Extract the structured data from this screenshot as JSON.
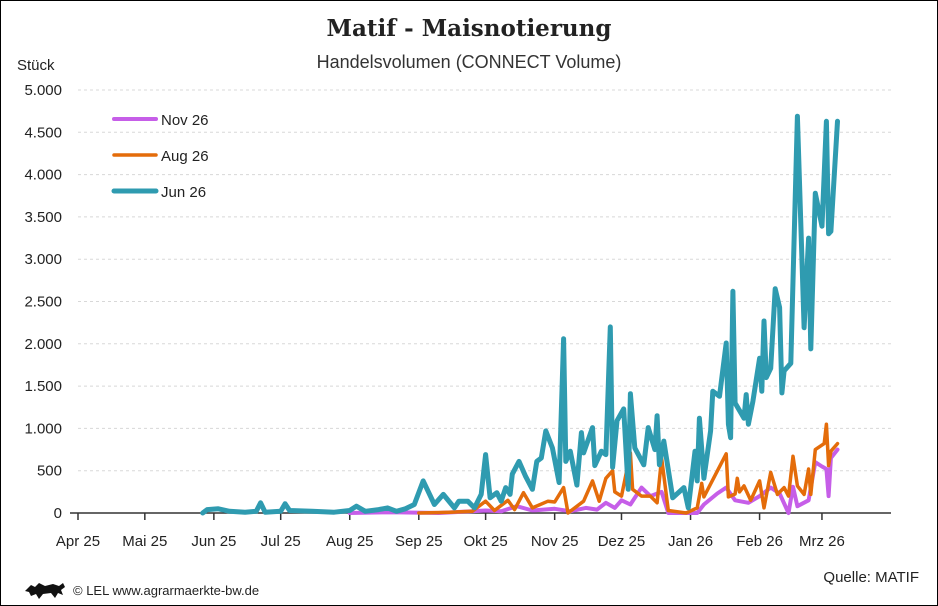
{
  "header": {
    "title": "Matif - Maisnotierung",
    "subtitle": "Handelsvolumen (CONNECT Volume)"
  },
  "footer": {
    "source": "Quelle: MATIF",
    "credit": "© LEL www.agrarmaerkte-bw.de",
    "logo_icon": "lion-icon"
  },
  "chart_data": {
    "type": "line",
    "title": "Matif - Maisnotierung",
    "subtitle": "Handelsvolumen (CONNECT Volume)",
    "ylabel": "Stück",
    "xlabel": "",
    "xlim": [
      "2025-04-01",
      "2026-04-01"
    ],
    "ylim": [
      0,
      5000
    ],
    "yticks": [
      0,
      500,
      1000,
      1500,
      2000,
      2500,
      3000,
      3500,
      4000,
      4500,
      5000
    ],
    "ytick_labels": [
      "0",
      "500",
      "1.000",
      "1.500",
      "2.000",
      "2.500",
      "3.000",
      "3.500",
      "4.000",
      "4.500",
      "5.000"
    ],
    "xticks": [
      "2025-04-01",
      "2025-05-01",
      "2025-06-01",
      "2025-07-01",
      "2025-08-01",
      "2025-09-01",
      "2025-10-01",
      "2025-11-01",
      "2025-12-01",
      "2026-01-01",
      "2026-02-01",
      "2026-03-01"
    ],
    "xtick_labels": [
      "Apr 25",
      "Mai 25",
      "Jun 25",
      "Jul 25",
      "Aug 25",
      "Sep 25",
      "Okt 25",
      "Nov 25",
      "Dez 25",
      "Jan 26",
      "Feb 26",
      "Mrz 26"
    ],
    "grid": "horizontal dashed",
    "legend": "top-left",
    "series": [
      {
        "name": "Nov 26",
        "color": "#c65ee8",
        "points": [
          [
            "2025-08-01",
            0
          ],
          [
            "2025-08-20",
            10
          ],
          [
            "2025-09-10",
            0
          ],
          [
            "2025-09-25",
            20
          ],
          [
            "2025-10-01",
            30
          ],
          [
            "2025-10-08",
            20
          ],
          [
            "2025-10-15",
            80
          ],
          [
            "2025-10-22",
            30
          ],
          [
            "2025-11-01",
            50
          ],
          [
            "2025-11-08",
            20
          ],
          [
            "2025-11-15",
            60
          ],
          [
            "2025-11-20",
            40
          ],
          [
            "2025-11-24",
            120
          ],
          [
            "2025-11-28",
            60
          ],
          [
            "2025-12-01",
            150
          ],
          [
            "2025-12-05",
            100
          ],
          [
            "2025-12-10",
            300
          ],
          [
            "2025-12-14",
            200
          ],
          [
            "2025-12-19",
            250
          ],
          [
            "2025-12-22",
            0
          ],
          [
            "2025-12-30",
            0
          ],
          [
            "2026-01-04",
            0
          ],
          [
            "2026-01-07",
            100
          ],
          [
            "2026-01-13",
            230
          ],
          [
            "2026-01-17",
            300
          ],
          [
            "2026-01-21",
            150
          ],
          [
            "2026-01-27",
            120
          ],
          [
            "2026-02-01",
            200
          ],
          [
            "2026-02-06",
            300
          ],
          [
            "2026-02-10",
            230
          ],
          [
            "2026-02-14",
            0
          ],
          [
            "2026-02-16",
            310
          ],
          [
            "2026-02-18",
            80
          ],
          [
            "2026-02-23",
            150
          ],
          [
            "2026-02-26",
            600
          ],
          [
            "2026-03-01",
            550
          ],
          [
            "2026-03-03",
            520
          ],
          [
            "2026-03-04",
            200
          ],
          [
            "2026-03-05",
            650
          ],
          [
            "2026-03-08",
            750
          ]
        ]
      },
      {
        "name": "Aug 26",
        "color": "#e46c0a",
        "points": [
          [
            "2025-09-01",
            0
          ],
          [
            "2025-09-15",
            10
          ],
          [
            "2025-09-25",
            20
          ],
          [
            "2025-10-01",
            140
          ],
          [
            "2025-10-05",
            30
          ],
          [
            "2025-10-11",
            150
          ],
          [
            "2025-10-14",
            40
          ],
          [
            "2025-10-18",
            240
          ],
          [
            "2025-10-22",
            60
          ],
          [
            "2025-10-29",
            140
          ],
          [
            "2025-11-01",
            130
          ],
          [
            "2025-11-05",
            300
          ],
          [
            "2025-11-07",
            0
          ],
          [
            "2025-11-14",
            140
          ],
          [
            "2025-11-18",
            380
          ],
          [
            "2025-11-21",
            140
          ],
          [
            "2025-11-24",
            410
          ],
          [
            "2025-11-27",
            500
          ],
          [
            "2025-11-28",
            250
          ],
          [
            "2025-12-01",
            200
          ],
          [
            "2025-12-05",
            710
          ],
          [
            "2025-12-06",
            280
          ],
          [
            "2025-12-10",
            200
          ],
          [
            "2025-12-14",
            200
          ],
          [
            "2025-12-17",
            120
          ],
          [
            "2025-12-19",
            650
          ],
          [
            "2025-12-22",
            30
          ],
          [
            "2025-12-30",
            0
          ],
          [
            "2026-01-04",
            60
          ],
          [
            "2026-01-06",
            350
          ],
          [
            "2026-01-07",
            190
          ],
          [
            "2026-01-17",
            700
          ],
          [
            "2026-01-18",
            190
          ],
          [
            "2026-01-21",
            225
          ],
          [
            "2026-01-22",
            410
          ],
          [
            "2026-01-23",
            250
          ],
          [
            "2026-01-25",
            320
          ],
          [
            "2026-01-28",
            150
          ],
          [
            "2026-02-01",
            380
          ],
          [
            "2026-02-03",
            60
          ],
          [
            "2026-02-06",
            480
          ],
          [
            "2026-02-09",
            220
          ],
          [
            "2026-02-12",
            300
          ],
          [
            "2026-02-14",
            200
          ],
          [
            "2026-02-16",
            670
          ],
          [
            "2026-02-18",
            320
          ],
          [
            "2026-02-21",
            220
          ],
          [
            "2026-02-23",
            520
          ],
          [
            "2026-02-24",
            220
          ],
          [
            "2026-02-26",
            750
          ],
          [
            "2026-03-02",
            820
          ],
          [
            "2026-03-03",
            1050
          ],
          [
            "2026-03-04",
            560
          ],
          [
            "2026-03-05",
            730
          ],
          [
            "2026-03-08",
            820
          ]
        ]
      },
      {
        "name": "Jun 26",
        "color": "#2f9bb0",
        "points": [
          [
            "2025-05-27",
            0
          ],
          [
            "2025-05-29",
            40
          ],
          [
            "2025-06-03",
            50
          ],
          [
            "2025-06-08",
            20
          ],
          [
            "2025-06-15",
            10
          ],
          [
            "2025-06-20",
            20
          ],
          [
            "2025-06-22",
            120
          ],
          [
            "2025-06-24",
            10
          ],
          [
            "2025-07-01",
            20
          ],
          [
            "2025-07-03",
            110
          ],
          [
            "2025-07-05",
            30
          ],
          [
            "2025-07-15",
            20
          ],
          [
            "2025-07-25",
            10
          ],
          [
            "2025-08-01",
            30
          ],
          [
            "2025-08-04",
            80
          ],
          [
            "2025-08-08",
            20
          ],
          [
            "2025-08-14",
            40
          ],
          [
            "2025-08-18",
            60
          ],
          [
            "2025-08-22",
            20
          ],
          [
            "2025-08-26",
            50
          ],
          [
            "2025-08-30",
            100
          ],
          [
            "2025-09-03",
            380
          ],
          [
            "2025-09-08",
            100
          ],
          [
            "2025-09-12",
            220
          ],
          [
            "2025-09-17",
            60
          ],
          [
            "2025-09-19",
            140
          ],
          [
            "2025-09-23",
            140
          ],
          [
            "2025-09-26",
            60
          ],
          [
            "2025-09-29",
            220
          ],
          [
            "2025-10-01",
            690
          ],
          [
            "2025-10-03",
            180
          ],
          [
            "2025-10-06",
            240
          ],
          [
            "2025-10-08",
            140
          ],
          [
            "2025-10-10",
            300
          ],
          [
            "2025-10-12",
            220
          ],
          [
            "2025-10-13",
            460
          ],
          [
            "2025-10-16",
            610
          ],
          [
            "2025-10-19",
            430
          ],
          [
            "2025-10-22",
            280
          ],
          [
            "2025-10-24",
            610
          ],
          [
            "2025-10-26",
            650
          ],
          [
            "2025-10-28",
            970
          ],
          [
            "2025-10-31",
            770
          ],
          [
            "2025-11-03",
            360
          ],
          [
            "2025-11-05",
            2060
          ],
          [
            "2025-11-06",
            610
          ],
          [
            "2025-11-08",
            730
          ],
          [
            "2025-11-11",
            330
          ],
          [
            "2025-11-13",
            950
          ],
          [
            "2025-11-14",
            710
          ],
          [
            "2025-11-18",
            1010
          ],
          [
            "2025-11-19",
            560
          ],
          [
            "2025-11-22",
            730
          ],
          [
            "2025-11-24",
            690
          ],
          [
            "2025-11-26",
            2200
          ],
          [
            "2025-11-27",
            540
          ],
          [
            "2025-11-29",
            1090
          ],
          [
            "2025-12-02",
            1230
          ],
          [
            "2025-12-04",
            280
          ],
          [
            "2025-12-05",
            1410
          ],
          [
            "2025-12-07",
            770
          ],
          [
            "2025-12-11",
            570
          ],
          [
            "2025-12-13",
            1010
          ],
          [
            "2025-12-16",
            750
          ],
          [
            "2025-12-17",
            1150
          ],
          [
            "2025-12-18",
            570
          ],
          [
            "2025-12-20",
            850
          ],
          [
            "2025-12-24",
            180
          ],
          [
            "2025-12-29",
            300
          ],
          [
            "2025-12-31",
            60
          ],
          [
            "2026-01-03",
            730
          ],
          [
            "2026-01-04",
            380
          ],
          [
            "2026-01-05",
            1120
          ],
          [
            "2026-01-07",
            410
          ],
          [
            "2026-01-10",
            970
          ],
          [
            "2026-01-11",
            1440
          ],
          [
            "2026-01-14",
            1380
          ],
          [
            "2026-01-17",
            2010
          ],
          [
            "2026-01-18",
            1050
          ],
          [
            "2026-01-19",
            890
          ],
          [
            "2026-01-20",
            2620
          ],
          [
            "2026-01-21",
            1300
          ],
          [
            "2026-01-25",
            1120
          ],
          [
            "2026-01-26",
            1400
          ],
          [
            "2026-01-27",
            1050
          ],
          [
            "2026-01-29",
            1320
          ],
          [
            "2026-02-01",
            1830
          ],
          [
            "2026-02-02",
            1440
          ],
          [
            "2026-02-03",
            2270
          ],
          [
            "2026-02-04",
            1600
          ],
          [
            "2026-02-06",
            1710
          ],
          [
            "2026-02-08",
            2650
          ],
          [
            "2026-02-10",
            2430
          ],
          [
            "2026-02-11",
            1420
          ],
          [
            "2026-02-12",
            1680
          ],
          [
            "2026-02-15",
            1770
          ],
          [
            "2026-02-18",
            4690
          ],
          [
            "2026-02-21",
            2190
          ],
          [
            "2026-02-23",
            3250
          ],
          [
            "2026-02-24",
            1940
          ],
          [
            "2026-02-26",
            3780
          ],
          [
            "2026-03-01",
            3390
          ],
          [
            "2026-03-03",
            4630
          ],
          [
            "2026-03-04",
            3300
          ],
          [
            "2026-03-05",
            3330
          ],
          [
            "2026-03-08",
            4630
          ]
        ]
      }
    ]
  }
}
